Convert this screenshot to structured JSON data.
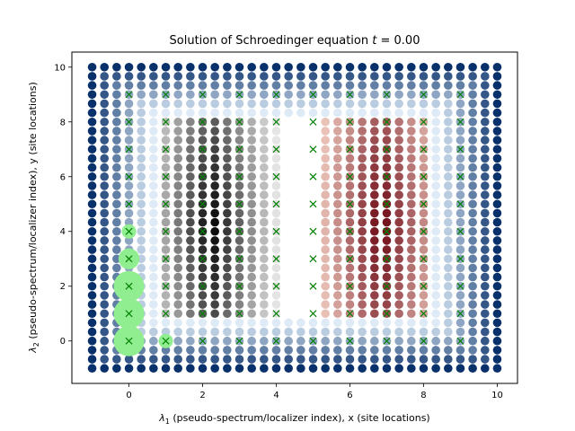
{
  "chart_data": {
    "type": "scatter",
    "title_prefix": "Solution of Schroedinger equation ",
    "title_var": "t",
    "title_value": " = 0.00",
    "xlabel_sym": "λ",
    "xlabel_sub": "1",
    "xlabel_rest": " (pseudo-spectrum/localizer index), x (site locations)",
    "ylabel_sym": "λ",
    "ylabel_sub": "2",
    "ylabel_rest": " (pseudo-spectrum/localizer index), y (site locations)",
    "xlim": [
      -1.55,
      10.55
    ],
    "ylim": [
      -1.55,
      10.55
    ],
    "xticks": [
      "0",
      "2",
      "4",
      "6",
      "8",
      "10"
    ],
    "yticks": [
      "0",
      "2",
      "4",
      "6",
      "8",
      "10"
    ],
    "grid_step": 0.333333,
    "colors": {
      "blue_dark": "#08306b",
      "blue_light": "#deebf7",
      "gray_dark": "#000000",
      "gray_light": "#eeeeee",
      "red_dark": "#67000d",
      "red_light": "#fee0d2",
      "green_marker": "#90ee90",
      "site_marker": "#008000"
    },
    "site_markers": {
      "x": [
        0,
        1,
        2,
        3,
        4,
        5,
        6,
        7,
        8,
        9
      ],
      "y": [
        0,
        1,
        2,
        3,
        4,
        5,
        6,
        7,
        8,
        9
      ]
    },
    "highlighted_sites": [
      {
        "x": 0,
        "y": 0,
        "weight": 1.0
      },
      {
        "x": 0,
        "y": 1,
        "weight": 1.0
      },
      {
        "x": 0,
        "y": 2,
        "weight": 1.0
      },
      {
        "x": 0,
        "y": 3,
        "weight": 0.55
      },
      {
        "x": 0,
        "y": 4,
        "weight": 0.25
      },
      {
        "x": 1,
        "y": 0,
        "weight": 0.25
      }
    ]
  }
}
